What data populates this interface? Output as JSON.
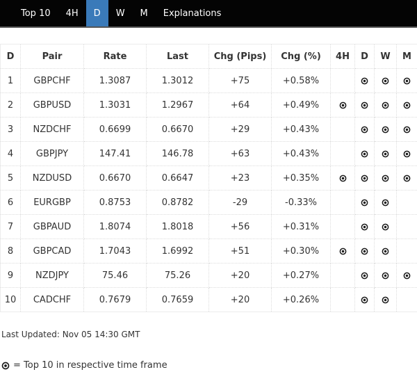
{
  "nav": {
    "items": [
      {
        "label": "Top 10",
        "active": false
      },
      {
        "label": "4H",
        "active": false
      },
      {
        "label": "D",
        "active": true
      },
      {
        "label": "W",
        "active": false
      },
      {
        "label": "M",
        "active": false
      },
      {
        "label": "Explanations",
        "active": false
      }
    ]
  },
  "table": {
    "headers": [
      "D",
      "Pair",
      "Rate",
      "Last",
      "Chg (Pips)",
      "Chg (%)",
      "4H",
      "D",
      "W",
      "M"
    ],
    "rows": [
      {
        "rank": "1",
        "pair": "GBPCHF",
        "rate": "1.3087",
        "last": "1.3012",
        "chg_pips": "+75",
        "chg_pct": "+0.58%",
        "tf": {
          "h4": false,
          "d": true,
          "w": true,
          "m": true
        }
      },
      {
        "rank": "2",
        "pair": "GBPUSD",
        "rate": "1.3031",
        "last": "1.2967",
        "chg_pips": "+64",
        "chg_pct": "+0.49%",
        "tf": {
          "h4": true,
          "d": true,
          "w": true,
          "m": true
        }
      },
      {
        "rank": "3",
        "pair": "NZDCHF",
        "rate": "0.6699",
        "last": "0.6670",
        "chg_pips": "+29",
        "chg_pct": "+0.43%",
        "tf": {
          "h4": false,
          "d": true,
          "w": true,
          "m": true
        }
      },
      {
        "rank": "4",
        "pair": "GBPJPY",
        "rate": "147.41",
        "last": "146.78",
        "chg_pips": "+63",
        "chg_pct": "+0.43%",
        "tf": {
          "h4": false,
          "d": true,
          "w": true,
          "m": true
        }
      },
      {
        "rank": "5",
        "pair": "NZDUSD",
        "rate": "0.6670",
        "last": "0.6647",
        "chg_pips": "+23",
        "chg_pct": "+0.35%",
        "tf": {
          "h4": true,
          "d": true,
          "w": true,
          "m": true
        }
      },
      {
        "rank": "6",
        "pair": "EURGBP",
        "rate": "0.8753",
        "last": "0.8782",
        "chg_pips": "-29",
        "chg_pct": "-0.33%",
        "tf": {
          "h4": false,
          "d": true,
          "w": true,
          "m": false
        }
      },
      {
        "rank": "7",
        "pair": "GBPAUD",
        "rate": "1.8074",
        "last": "1.8018",
        "chg_pips": "+56",
        "chg_pct": "+0.31%",
        "tf": {
          "h4": false,
          "d": true,
          "w": true,
          "m": false
        }
      },
      {
        "rank": "8",
        "pair": "GBPCAD",
        "rate": "1.7043",
        "last": "1.6992",
        "chg_pips": "+51",
        "chg_pct": "+0.30%",
        "tf": {
          "h4": true,
          "d": true,
          "w": true,
          "m": false
        }
      },
      {
        "rank": "9",
        "pair": "NZDJPY",
        "rate": "75.46",
        "last": "75.26",
        "chg_pips": "+20",
        "chg_pct": "+0.27%",
        "tf": {
          "h4": false,
          "d": true,
          "w": true,
          "m": true
        }
      },
      {
        "rank": "10",
        "pair": "CADCHF",
        "rate": "0.7679",
        "last": "0.7659",
        "chg_pips": "+20",
        "chg_pct": "+0.26%",
        "tf": {
          "h4": false,
          "d": true,
          "w": true,
          "m": false
        }
      }
    ]
  },
  "footer": {
    "last_updated": "Last Updated: Nov 05 14:30 GMT",
    "legend_text": "= Top 10 in respective time frame",
    "legend_icon": "bullseye-icon"
  },
  "colors": {
    "accent_active_tab": "#3a7ab9",
    "nav_background": "#040404",
    "table_border": "#dcdcdc",
    "text": "#333333",
    "icon": "#1a1a1a"
  }
}
